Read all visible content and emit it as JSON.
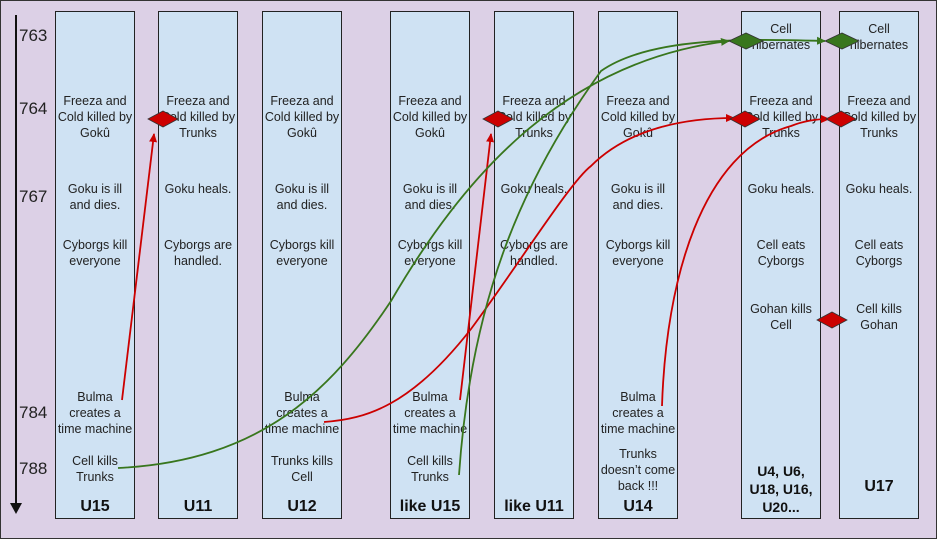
{
  "years": [
    "763",
    "764",
    "767",
    "784",
    "788"
  ],
  "columns": [
    {
      "label": "U15",
      "events": [
        "Freeza and Cold killed by Gokû",
        "Goku is ill and dies.",
        "Cyborgs kill everyone",
        "Bulma creates a time machine",
        "Cell kills Trunks"
      ]
    },
    {
      "label": "U11",
      "events": [
        "Freeza and Cold killed by Trunks",
        "Goku heals.",
        "Cyborgs are handled."
      ]
    },
    {
      "label": "U12",
      "events": [
        "Freeza and Cold killed by Gokû",
        "Goku is ill and dies.",
        "Cyborgs kill everyone",
        "Bulma creates a time machine",
        "Trunks kills Cell"
      ]
    },
    {
      "label": "like U15",
      "events": [
        "Freeza and Cold killed by Gokû",
        "Goku is ill and dies.",
        "Cyborgs kill everyone",
        "Bulma creates a time machine",
        "Cell kills Trunks"
      ]
    },
    {
      "label": "like U11",
      "events": [
        "Freeza and Cold killed by Trunks",
        "Goku heals.",
        "Cyborgs are handled."
      ]
    },
    {
      "label": "U14",
      "events": [
        "Freeza and Cold killed by Gokû",
        "Goku is ill and dies.",
        "Cyborgs kill everyone",
        "Bulma creates a time machine",
        "Trunks doesn’t come back !!!"
      ]
    },
    {
      "label": "U4, U6, U18, U16, U20...",
      "events": [
        "Cell hibernates",
        "Freeza and Cold killed by Trunks",
        "Goku heals.",
        "Cell eats Cyborgs",
        "Gohan kills Cell"
      ]
    },
    {
      "label": "U17",
      "events": [
        "Cell hibernates",
        "Freeza and Cold killed by Trunks",
        "Goku heals.",
        "Cell eats Cyborgs",
        "Cell kills Gohan"
      ]
    }
  ],
  "colors": {
    "background": "#dcd0e6",
    "column": "#cfe2f3",
    "red_arrow": "#cc0000",
    "green_arrow": "#38761d"
  }
}
